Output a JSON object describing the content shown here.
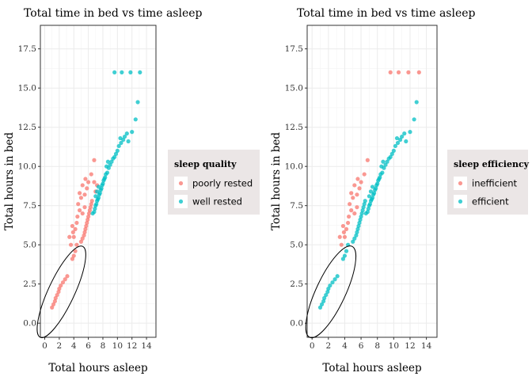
{
  "colors": {
    "red": "#F8766D",
    "teal": "#00BFC4",
    "grid_major": "#EBEBEB",
    "grid_minor": "#F4F4F4",
    "panel_border": "#333333",
    "legend_bg": "#EBE6E6"
  },
  "chart_data": [
    {
      "type": "scatter",
      "title": "Total time in bed vs time asleep",
      "xlabel": "Total hours asleep",
      "ylabel": "Total hours in bed",
      "xlim": [
        -0.6,
        15.3
      ],
      "ylim": [
        -0.9,
        19.0
      ],
      "xticks": [
        0,
        2,
        4,
        6,
        8,
        10,
        12,
        14
      ],
      "yticks": [
        0.0,
        2.5,
        5.0,
        7.5,
        10.0,
        12.5,
        15.0,
        17.5
      ],
      "ytick_labels": [
        "0.0",
        "2.5",
        "5.0",
        "7.5",
        "10.0",
        "12.5",
        "15.0",
        "17.5"
      ],
      "grid": true,
      "legend": {
        "title": "sleep quality",
        "placement": "right",
        "entries": [
          {
            "label": "poorly rested",
            "color": "#F8766D"
          },
          {
            "label": "well rested",
            "color": "#00BFC4"
          }
        ]
      },
      "annotation": {
        "type": "ellipse",
        "center": [
          2.3,
          2.0
        ],
        "rx": 1.8,
        "ry": 3.2,
        "angle_deg": 25
      },
      "series": [
        {
          "name": "poorly rested",
          "color": "#F8766D",
          "points": [
            [
              1.0,
              1.0
            ],
            [
              1.2,
              1.2
            ],
            [
              1.4,
              1.4
            ],
            [
              1.5,
              1.6
            ],
            [
              1.7,
              1.8
            ],
            [
              1.9,
              2.0
            ],
            [
              2.0,
              2.2
            ],
            [
              2.2,
              2.4
            ],
            [
              2.5,
              2.6
            ],
            [
              2.8,
              2.8
            ],
            [
              3.1,
              3.0
            ],
            [
              3.8,
              4.1
            ],
            [
              4.0,
              4.3
            ],
            [
              4.2,
              4.6
            ],
            [
              4.4,
              5.0
            ],
            [
              4.0,
              5.5
            ],
            [
              4.2,
              6.0
            ],
            [
              4.4,
              6.4
            ],
            [
              3.8,
              6.2
            ],
            [
              4.5,
              6.8
            ],
            [
              5.0,
              5.2
            ],
            [
              5.2,
              5.4
            ],
            [
              5.4,
              5.6
            ],
            [
              5.5,
              5.8
            ],
            [
              5.6,
              6.0
            ],
            [
              5.7,
              6.2
            ],
            [
              5.8,
              6.4
            ],
            [
              5.9,
              6.6
            ],
            [
              6.0,
              6.8
            ],
            [
              6.1,
              7.0
            ],
            [
              6.2,
              7.2
            ],
            [
              6.3,
              7.4
            ],
            [
              6.4,
              7.6
            ],
            [
              6.5,
              7.8
            ],
            [
              5.2,
              7.0
            ],
            [
              5.5,
              7.4
            ],
            [
              4.8,
              7.2
            ],
            [
              4.6,
              7.6
            ],
            [
              5.0,
              8.0
            ],
            [
              4.8,
              8.3
            ],
            [
              5.5,
              8.2
            ],
            [
              5.8,
              8.6
            ],
            [
              5.2,
              8.8
            ],
            [
              5.6,
              9.2
            ],
            [
              6.0,
              9.0
            ],
            [
              6.4,
              9.5
            ],
            [
              6.8,
              10.4
            ],
            [
              7.0,
              8.4
            ],
            [
              7.2,
              8.8
            ],
            [
              6.8,
              9.0
            ],
            [
              3.6,
              5.0
            ],
            [
              3.4,
              5.5
            ],
            [
              3.9,
              5.8
            ]
          ]
        },
        {
          "name": "well rested",
          "color": "#00BFC4",
          "points": [
            [
              6.6,
              7.0
            ],
            [
              6.8,
              7.1
            ],
            [
              6.9,
              7.3
            ],
            [
              7.0,
              7.5
            ],
            [
              7.1,
              7.6
            ],
            [
              7.2,
              7.8
            ],
            [
              7.3,
              7.9
            ],
            [
              7.4,
              8.0
            ],
            [
              7.5,
              8.2
            ],
            [
              7.6,
              8.3
            ],
            [
              7.7,
              8.5
            ],
            [
              7.8,
              8.6
            ],
            [
              7.9,
              8.8
            ],
            [
              8.0,
              8.9
            ],
            [
              8.1,
              9.1
            ],
            [
              8.2,
              9.2
            ],
            [
              8.3,
              9.3
            ],
            [
              8.4,
              9.5
            ],
            [
              7.2,
              8.4
            ],
            [
              7.4,
              8.7
            ],
            [
              7.0,
              8.1
            ],
            [
              8.6,
              9.6
            ],
            [
              8.8,
              9.9
            ],
            [
              9.0,
              10.1
            ],
            [
              9.2,
              10.3
            ],
            [
              9.4,
              10.5
            ],
            [
              9.6,
              10.6
            ],
            [
              9.8,
              10.8
            ],
            [
              8.5,
              10.0
            ],
            [
              8.7,
              10.3
            ],
            [
              10.0,
              11.0
            ],
            [
              10.2,
              11.3
            ],
            [
              10.5,
              11.5
            ],
            [
              10.8,
              11.7
            ],
            [
              11.0,
              11.9
            ],
            [
              11.3,
              12.1
            ],
            [
              10.4,
              11.8
            ],
            [
              11.5,
              11.6
            ],
            [
              12.0,
              12.2
            ],
            [
              12.5,
              13.0
            ],
            [
              12.8,
              14.1
            ],
            [
              9.6,
              16.0
            ],
            [
              10.6,
              16.0
            ],
            [
              11.8,
              16.0
            ],
            [
              13.1,
              16.0
            ]
          ]
        }
      ]
    },
    {
      "type": "scatter",
      "title": "Total time in bed vs time asleep",
      "xlabel": "Total hours asleep",
      "ylabel": "Total hours in bed",
      "xlim": [
        -0.6,
        15.3
      ],
      "ylim": [
        -0.9,
        19.0
      ],
      "xticks": [
        0,
        2,
        4,
        6,
        8,
        10,
        12,
        14
      ],
      "yticks": [
        0.0,
        2.5,
        5.0,
        7.5,
        10.0,
        12.5,
        15.0,
        17.5
      ],
      "ytick_labels": [
        "0.0",
        "2.5",
        "5.0",
        "7.5",
        "10.0",
        "12.5",
        "15.0",
        "17.5"
      ],
      "grid": true,
      "legend": {
        "title": "sleep efficiency",
        "placement": "right",
        "entries": [
          {
            "label": "inefficient",
            "color": "#F8766D"
          },
          {
            "label": "efficient",
            "color": "#00BFC4"
          }
        ]
      },
      "annotation": {
        "type": "ellipse",
        "center": [
          2.3,
          2.0
        ],
        "rx": 1.8,
        "ry": 3.2,
        "angle_deg": 25
      },
      "series": [
        {
          "name": "inefficient",
          "color": "#F8766D",
          "points": [
            [
              4.0,
              5.5
            ],
            [
              4.2,
              6.0
            ],
            [
              4.4,
              6.4
            ],
            [
              3.8,
              6.2
            ],
            [
              4.5,
              6.8
            ],
            [
              4.8,
              7.2
            ],
            [
              4.6,
              7.6
            ],
            [
              5.0,
              8.0
            ],
            [
              4.8,
              8.3
            ],
            [
              5.5,
              8.2
            ],
            [
              5.8,
              8.6
            ],
            [
              5.2,
              8.8
            ],
            [
              5.6,
              9.2
            ],
            [
              6.0,
              9.0
            ],
            [
              6.4,
              9.5
            ],
            [
              6.8,
              10.4
            ],
            [
              3.6,
              5.0
            ],
            [
              3.4,
              5.5
            ],
            [
              3.9,
              5.8
            ],
            [
              5.2,
              7.0
            ],
            [
              5.5,
              7.4
            ],
            [
              9.6,
              16.0
            ],
            [
              10.6,
              16.0
            ],
            [
              11.8,
              16.0
            ],
            [
              13.1,
              16.0
            ]
          ]
        },
        {
          "name": "efficient",
          "color": "#00BFC4",
          "points": [
            [
              1.0,
              1.0
            ],
            [
              1.2,
              1.2
            ],
            [
              1.4,
              1.4
            ],
            [
              1.5,
              1.6
            ],
            [
              1.7,
              1.8
            ],
            [
              1.9,
              2.0
            ],
            [
              2.0,
              2.2
            ],
            [
              2.2,
              2.4
            ],
            [
              2.5,
              2.6
            ],
            [
              2.8,
              2.8
            ],
            [
              3.1,
              3.0
            ],
            [
              3.8,
              4.1
            ],
            [
              4.0,
              4.3
            ],
            [
              4.2,
              4.6
            ],
            [
              4.4,
              5.0
            ],
            [
              5.0,
              5.2
            ],
            [
              5.2,
              5.4
            ],
            [
              5.4,
              5.6
            ],
            [
              5.5,
              5.8
            ],
            [
              5.6,
              6.0
            ],
            [
              5.7,
              6.2
            ],
            [
              5.8,
              6.4
            ],
            [
              5.9,
              6.6
            ],
            [
              6.0,
              6.8
            ],
            [
              6.1,
              7.0
            ],
            [
              6.2,
              7.2
            ],
            [
              6.3,
              7.4
            ],
            [
              6.4,
              7.6
            ],
            [
              6.5,
              7.8
            ],
            [
              6.6,
              7.0
            ],
            [
              6.8,
              7.1
            ],
            [
              6.9,
              7.3
            ],
            [
              7.0,
              7.5
            ],
            [
              7.1,
              7.6
            ],
            [
              7.2,
              7.8
            ],
            [
              7.3,
              7.9
            ],
            [
              7.4,
              8.0
            ],
            [
              7.5,
              8.2
            ],
            [
              7.6,
              8.3
            ],
            [
              7.7,
              8.5
            ],
            [
              7.8,
              8.6
            ],
            [
              7.9,
              8.8
            ],
            [
              8.0,
              8.9
            ],
            [
              8.1,
              9.1
            ],
            [
              8.2,
              9.2
            ],
            [
              8.3,
              9.3
            ],
            [
              8.4,
              9.5
            ],
            [
              7.2,
              8.4
            ],
            [
              7.4,
              8.7
            ],
            [
              7.0,
              8.1
            ],
            [
              8.6,
              9.6
            ],
            [
              8.8,
              9.9
            ],
            [
              9.0,
              10.1
            ],
            [
              9.2,
              10.3
            ],
            [
              9.4,
              10.5
            ],
            [
              9.6,
              10.6
            ],
            [
              9.8,
              10.8
            ],
            [
              8.5,
              10.0
            ],
            [
              8.7,
              10.3
            ],
            [
              10.0,
              11.0
            ],
            [
              10.2,
              11.3
            ],
            [
              10.5,
              11.5
            ],
            [
              10.8,
              11.7
            ],
            [
              11.0,
              11.9
            ],
            [
              11.3,
              12.1
            ],
            [
              10.4,
              11.8
            ],
            [
              11.5,
              11.6
            ],
            [
              12.0,
              12.2
            ],
            [
              12.5,
              13.0
            ],
            [
              12.8,
              14.1
            ]
          ]
        }
      ]
    }
  ]
}
